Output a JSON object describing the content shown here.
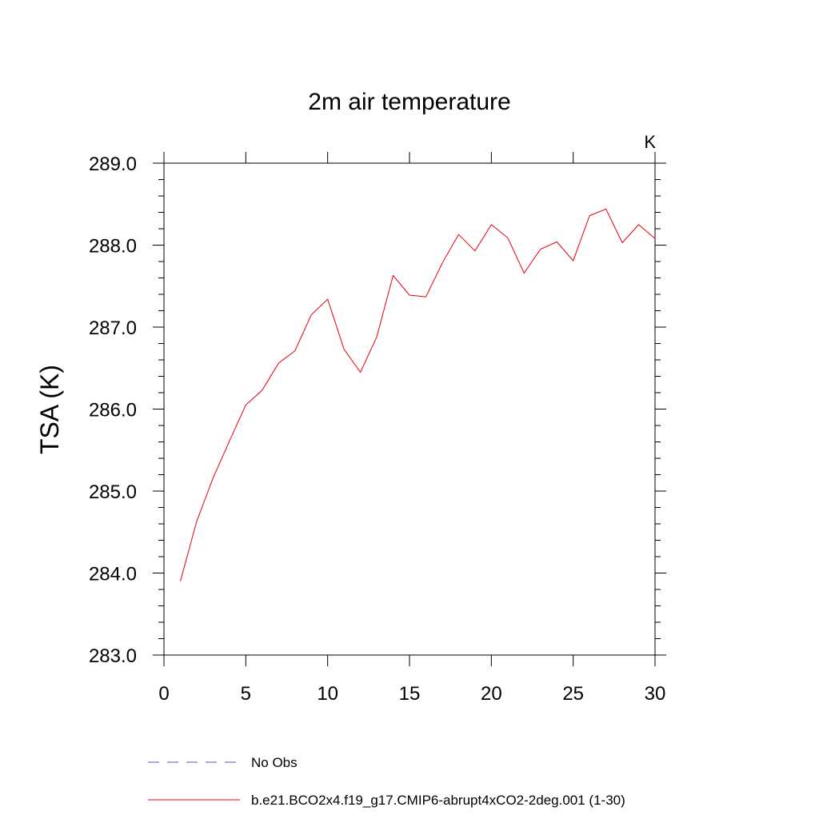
{
  "chart_data": {
    "type": "line",
    "title": "2m air temperature",
    "unit_label": "K",
    "xlabel": "",
    "ylabel": "TSA  (K)",
    "xlim": [
      0,
      30
    ],
    "ylim": [
      283.0,
      289.0
    ],
    "x_ticks": [
      0,
      5,
      10,
      15,
      20,
      25,
      30
    ],
    "x_tick_labels": [
      "0",
      "5",
      "10",
      "15",
      "20",
      "25",
      "30"
    ],
    "y_ticks": [
      283.0,
      284.0,
      285.0,
      286.0,
      287.0,
      288.0,
      289.0
    ],
    "y_tick_labels": [
      "283.0",
      "284.0",
      "285.0",
      "286.0",
      "287.0",
      "288.0",
      "289.0"
    ],
    "grid": false,
    "legend_position": "bottom",
    "series": [
      {
        "name": "No Obs",
        "color": "#5555cc",
        "dash": "dashed",
        "x": [],
        "values": []
      },
      {
        "name": "b.e21.BCO2x4.f19_g17.CMIP6-abrupt4xCO2-2deg.001 (1-30)",
        "color": "#e8000b",
        "dash": "solid",
        "x": [
          1,
          2,
          3,
          4,
          5,
          6,
          7,
          8,
          9,
          10,
          11,
          12,
          13,
          14,
          15,
          16,
          17,
          18,
          19,
          20,
          21,
          22,
          23,
          24,
          25,
          26,
          27,
          28,
          29,
          30
        ],
        "values": [
          283.9,
          284.63,
          285.16,
          285.61,
          286.05,
          286.23,
          286.56,
          286.71,
          287.15,
          287.34,
          286.73,
          286.45,
          286.88,
          287.63,
          287.39,
          287.37,
          287.78,
          288.13,
          287.93,
          288.25,
          288.09,
          287.66,
          287.95,
          288.04,
          287.81,
          288.36,
          288.44,
          288.03,
          288.25,
          288.08
        ]
      }
    ]
  }
}
